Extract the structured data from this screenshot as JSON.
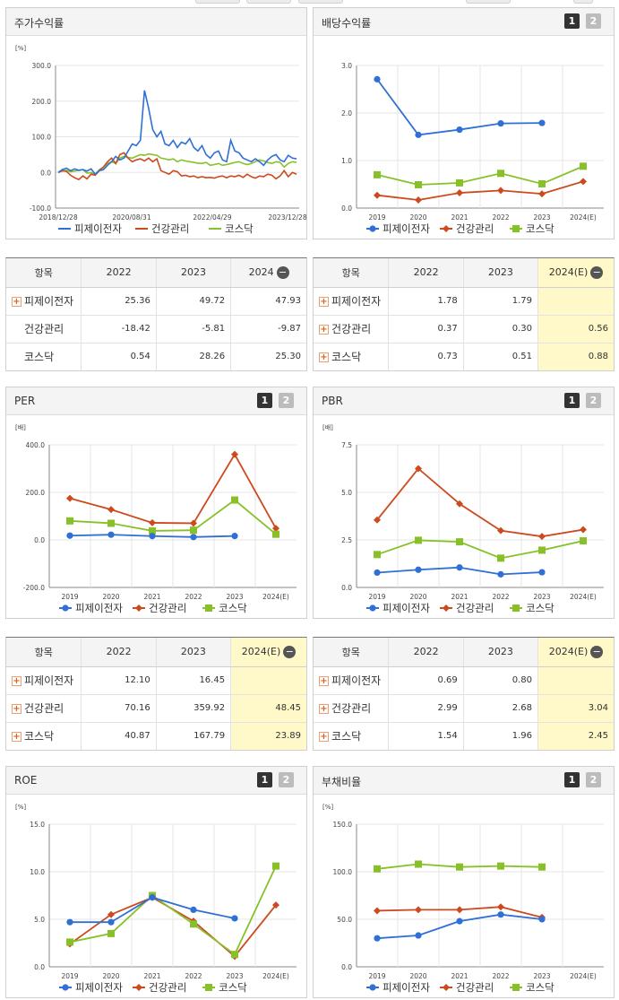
{
  "top_strip": {
    "pills": 5
  },
  "legend_labels": [
    "피제이전자",
    "건강관리",
    "코스닥"
  ],
  "colors": {
    "pje": "#2f6fd6",
    "health": "#cc4a1e",
    "kosdaq": "#88c02a"
  },
  "stock": {
    "title": "주가수익률",
    "chart_data": {
      "type": "line",
      "unit": "[%]",
      "x_ticks": [
        "2018/12/28",
        "2020/08/31",
        "2022/04/29",
        "2023/12/28"
      ],
      "y_ticks": [
        "300.0",
        "200.0",
        "100.0",
        "0.0",
        "-100.0"
      ],
      "ylim": [
        -100,
        300
      ],
      "series": [
        {
          "name": "피제이전자",
          "color": "#2f6fd6",
          "values": [
            0,
            8,
            12,
            5,
            10,
            6,
            8,
            4,
            10,
            -5,
            5,
            8,
            20,
            30,
            45,
            35,
            40,
            60,
            80,
            75,
            90,
            230,
            180,
            120,
            100,
            115,
            80,
            75,
            90,
            70,
            85,
            80,
            95,
            70,
            60,
            75,
            50,
            40,
            55,
            60,
            35,
            30,
            90,
            60,
            55,
            40,
            35,
            30,
            38,
            30,
            20,
            35,
            45,
            50,
            35,
            30,
            48,
            40,
            38
          ]
        },
        {
          "name": "건강관리",
          "color": "#cc4a1e",
          "values": [
            0,
            5,
            3,
            -8,
            -15,
            -20,
            -10,
            -18,
            -5,
            -8,
            5,
            15,
            30,
            40,
            25,
            50,
            55,
            40,
            30,
            35,
            38,
            32,
            40,
            30,
            38,
            5,
            0,
            -5,
            5,
            2,
            -10,
            -8,
            -12,
            -10,
            -15,
            -12,
            -15,
            -14,
            -16,
            -12,
            -10,
            -15,
            -10,
            -12,
            -8,
            -14,
            -5,
            -12,
            -16,
            -10,
            -12,
            -5,
            -8,
            -18,
            -10,
            5,
            -12,
            0,
            -5
          ]
        },
        {
          "name": "코스닥",
          "color": "#88c02a",
          "values": [
            0,
            4,
            6,
            2,
            4,
            6,
            8,
            -2,
            0,
            -5,
            8,
            15,
            25,
            30,
            25,
            40,
            45,
            42,
            40,
            45,
            50,
            48,
            52,
            50,
            48,
            40,
            38,
            35,
            38,
            30,
            35,
            32,
            30,
            28,
            26,
            25,
            28,
            20,
            22,
            25,
            20,
            22,
            25,
            28,
            30,
            25,
            22,
            25,
            30,
            35,
            32,
            28,
            25,
            30,
            28,
            15,
            25,
            30,
            28
          ]
        }
      ]
    }
  },
  "dividend": {
    "title": "배당수익률",
    "chart_data": {
      "type": "line",
      "unit": "",
      "categories": [
        "2019",
        "2020",
        "2021",
        "2022",
        "2023",
        "2024(E)"
      ],
      "y_ticks": [
        "3.0",
        "2.0",
        "1.0",
        "0.0"
      ],
      "ylim": [
        0,
        3
      ],
      "series": [
        {
          "name": "피제이전자",
          "values": [
            2.71,
            1.54,
            1.65,
            1.78,
            1.79,
            null
          ]
        },
        {
          "name": "건강관리",
          "values": [
            0.27,
            0.17,
            0.32,
            0.37,
            0.3,
            0.56
          ]
        },
        {
          "name": "코스닥",
          "values": [
            0.7,
            0.49,
            0.53,
            0.73,
            0.51,
            0.88
          ]
        }
      ]
    }
  },
  "per": {
    "title": "PER",
    "chart_data": {
      "type": "line",
      "unit": "[배]",
      "categories": [
        "2019",
        "2020",
        "2021",
        "2022",
        "2023",
        "2024(E)"
      ],
      "y_ticks": [
        "400.0",
        "200.0",
        "0.0",
        "-200.0"
      ],
      "ylim": [
        -200,
        400
      ],
      "series": [
        {
          "name": "피제이전자",
          "values": [
            18,
            22,
            16,
            12.1,
            16.45,
            null
          ]
        },
        {
          "name": "건강관리",
          "values": [
            175,
            128,
            72,
            70.16,
            359.92,
            48.45
          ]
        },
        {
          "name": "코스닥",
          "values": [
            80,
            70,
            38,
            40.87,
            167.79,
            23.89
          ]
        }
      ]
    }
  },
  "pbr": {
    "title": "PBR",
    "chart_data": {
      "type": "line",
      "unit": "[배]",
      "categories": [
        "2019",
        "2020",
        "2021",
        "2022",
        "2023",
        "2024(E)"
      ],
      "y_ticks": [
        "7.5",
        "5.0",
        "2.5",
        "0.0"
      ],
      "ylim": [
        0,
        7.5
      ],
      "series": [
        {
          "name": "피제이전자",
          "values": [
            0.78,
            0.93,
            1.05,
            0.69,
            0.8,
            null
          ]
        },
        {
          "name": "건강관리",
          "values": [
            3.55,
            6.25,
            4.4,
            2.99,
            2.68,
            3.04
          ]
        },
        {
          "name": "코스닥",
          "values": [
            1.73,
            2.48,
            2.4,
            1.54,
            1.96,
            2.45
          ]
        }
      ]
    }
  },
  "roe": {
    "title": "ROE",
    "chart_data": {
      "type": "line",
      "unit": "[%]",
      "categories": [
        "2019",
        "2020",
        "2021",
        "2022",
        "2023",
        "2024(E)"
      ],
      "y_ticks": [
        "15.0",
        "10.0",
        "5.0",
        "0.0"
      ],
      "ylim": [
        0,
        15
      ],
      "series": [
        {
          "name": "피제이전자",
          "values": [
            4.7,
            4.7,
            7.3,
            6.0,
            5.1,
            null
          ]
        },
        {
          "name": "건강관리",
          "values": [
            2.4,
            5.5,
            7.3,
            4.8,
            1.1,
            6.5
          ]
        },
        {
          "name": "코스닥",
          "values": [
            2.6,
            3.5,
            7.5,
            4.5,
            1.3,
            10.6
          ]
        }
      ]
    }
  },
  "debt": {
    "title": "부채비율",
    "chart_data": {
      "type": "line",
      "unit": "[%]",
      "categories": [
        "2019",
        "2020",
        "2021",
        "2022",
        "2023",
        "2024(E)"
      ],
      "y_ticks": [
        "150.0",
        "100.0",
        "50.0",
        "0.0"
      ],
      "ylim": [
        0,
        150
      ],
      "series": [
        {
          "name": "피제이전자",
          "values": [
            30,
            33,
            48,
            55,
            50,
            null
          ]
        },
        {
          "name": "건강관리",
          "values": [
            59,
            60,
            60,
            63,
            52,
            null
          ]
        },
        {
          "name": "코스닥",
          "values": [
            103,
            108,
            105,
            106,
            105,
            null
          ]
        }
      ]
    }
  },
  "tables": {
    "stock": {
      "header": [
        "항목",
        "2022",
        "2023",
        "2024"
      ],
      "rows": [
        {
          "name": "피제이전자",
          "plus": true,
          "v": [
            "25.36",
            "49.72",
            "47.93"
          ]
        },
        {
          "name": "건강관리",
          "plus": false,
          "v": [
            "-18.42",
            "-5.81",
            "-9.87"
          ]
        },
        {
          "name": "코스닥",
          "plus": false,
          "v": [
            "0.54",
            "28.26",
            "25.30"
          ]
        }
      ]
    },
    "dividend": {
      "header": [
        "항목",
        "2022",
        "2023",
        "2024(E)"
      ],
      "rows": [
        {
          "name": "피제이전자",
          "plus": true,
          "v": [
            "1.78",
            "1.79",
            ""
          ]
        },
        {
          "name": "건강관리",
          "plus": true,
          "v": [
            "0.37",
            "0.30",
            "0.56"
          ]
        },
        {
          "name": "코스닥",
          "plus": true,
          "v": [
            "0.73",
            "0.51",
            "0.88"
          ]
        }
      ]
    },
    "per": {
      "header": [
        "항목",
        "2022",
        "2023",
        "2024(E)"
      ],
      "rows": [
        {
          "name": "피제이전자",
          "plus": true,
          "v": [
            "12.10",
            "16.45",
            ""
          ]
        },
        {
          "name": "건강관리",
          "plus": true,
          "v": [
            "70.16",
            "359.92",
            "48.45"
          ]
        },
        {
          "name": "코스닥",
          "plus": true,
          "v": [
            "40.87",
            "167.79",
            "23.89"
          ]
        }
      ]
    },
    "pbr": {
      "header": [
        "항목",
        "2022",
        "2023",
        "2024(E)"
      ],
      "rows": [
        {
          "name": "피제이전자",
          "plus": true,
          "v": [
            "0.69",
            "0.80",
            ""
          ]
        },
        {
          "name": "건강관리",
          "plus": true,
          "v": [
            "2.99",
            "2.68",
            "3.04"
          ]
        },
        {
          "name": "코스닥",
          "plus": true,
          "v": [
            "1.54",
            "1.96",
            "2.45"
          ]
        }
      ]
    }
  },
  "buttons": {
    "one": "1",
    "two": "2"
  },
  "icons": {
    "plus": "+",
    "minus": "−"
  }
}
